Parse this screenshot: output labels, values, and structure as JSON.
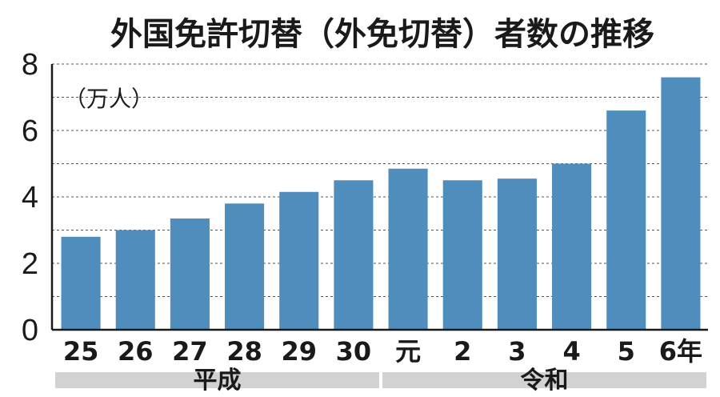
{
  "chart_data": {
    "type": "bar",
    "title": "外国免許切替（外免切替）者数の推移",
    "unit_label": "（万人）",
    "categories": [
      "25",
      "26",
      "27",
      "28",
      "29",
      "30",
      "元",
      "2",
      "3",
      "4",
      "5",
      "6年"
    ],
    "values": [
      2.8,
      3.0,
      3.35,
      3.8,
      4.15,
      4.5,
      4.85,
      4.5,
      4.55,
      5.0,
      6.6,
      7.6
    ],
    "ylim": [
      0,
      8
    ],
    "yticks": [
      0,
      2,
      4,
      6,
      8
    ],
    "grid": true,
    "era_groups": [
      {
        "label": "平成",
        "categories": [
          "25",
          "26",
          "27",
          "28",
          "29",
          "30"
        ]
      },
      {
        "label": "令和",
        "categories": [
          "元",
          "2",
          "3",
          "4",
          "5",
          "6年"
        ]
      }
    ],
    "colors": {
      "bar": "#4f8dbd",
      "band": "#d2d2d2"
    }
  }
}
